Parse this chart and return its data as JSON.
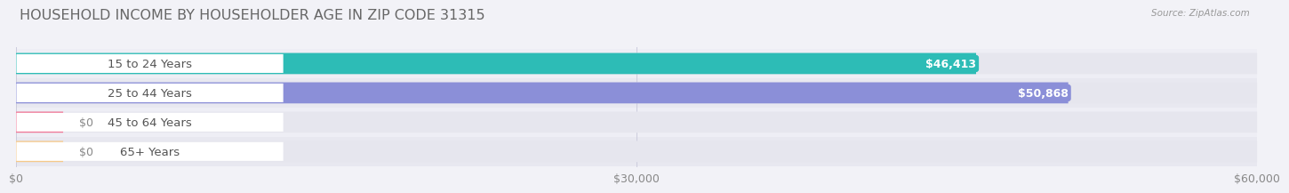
{
  "title": "HOUSEHOLD INCOME BY HOUSEHOLDER AGE IN ZIP CODE 31315",
  "source": "Source: ZipAtlas.com",
  "categories": [
    "15 to 24 Years",
    "25 to 44 Years",
    "45 to 64 Years",
    "65+ Years"
  ],
  "values": [
    46413,
    50868,
    0,
    0
  ],
  "bar_colors": [
    "#2dbcb6",
    "#8b8fd8",
    "#f07898",
    "#f5c98a"
  ],
  "value_labels": [
    "$46,413",
    "$50,868",
    "$0",
    "$0"
  ],
  "xlim": [
    0,
    60000
  ],
  "xticks": [
    0,
    30000,
    60000
  ],
  "xticklabels": [
    "$0",
    "$30,000",
    "$60,000"
  ],
  "background_color": "#f2f2f7",
  "bar_bg_color": "#e6e6ee",
  "label_bg_color": "#ffffff",
  "row_bg_color": "#ebebf2",
  "title_fontsize": 11.5,
  "tick_fontsize": 9,
  "label_fontsize": 9.5,
  "value_fontsize": 9
}
